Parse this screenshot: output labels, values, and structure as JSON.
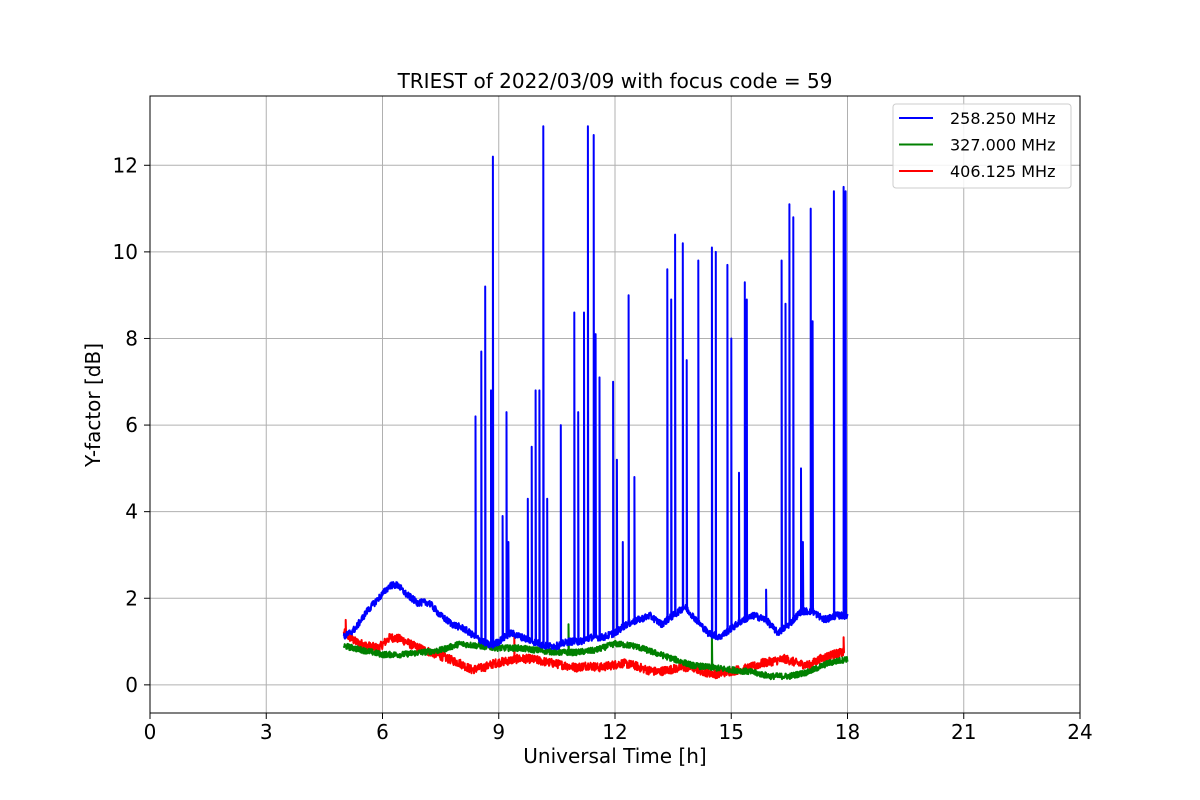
{
  "chart_data": {
    "type": "line",
    "title": "TRIEST of 2022/03/09 with focus code = 59",
    "xlabel": "Universal Time [h]",
    "ylabel": "Y-factor [dB]",
    "xlim": [
      0,
      24
    ],
    "ylim": [
      -0.65,
      13.6
    ],
    "xticks": [
      0,
      3,
      6,
      9,
      12,
      15,
      18,
      21,
      24
    ],
    "yticks": [
      0,
      2,
      4,
      6,
      8,
      10,
      12
    ],
    "grid": true,
    "legend_position": "top-right",
    "series": [
      {
        "name": "258.250 MHz",
        "color": "#0000ff",
        "x": [
          5.0,
          5.3,
          5.6,
          5.9,
          6.2,
          6.4,
          6.6,
          6.9,
          7.2,
          7.5,
          7.8,
          8.1,
          8.4,
          8.6,
          8.8,
          9.0,
          9.3,
          9.6,
          9.9,
          10.2,
          10.5,
          10.8,
          11.1,
          11.4,
          11.7,
          12.0,
          12.3,
          12.6,
          12.9,
          13.2,
          13.5,
          13.8,
          14.1,
          14.4,
          14.7,
          15.0,
          15.3,
          15.6,
          15.9,
          16.2,
          16.5,
          16.8,
          17.1,
          17.4,
          17.7,
          18.0
        ],
        "y": [
          1.1,
          1.3,
          1.7,
          2.0,
          2.3,
          2.3,
          2.1,
          1.9,
          1.9,
          1.6,
          1.4,
          1.3,
          1.1,
          1.0,
          0.9,
          1.0,
          1.2,
          1.1,
          1.0,
          0.9,
          0.9,
          1.0,
          1.0,
          1.1,
          1.1,
          1.2,
          1.4,
          1.5,
          1.6,
          1.4,
          1.6,
          1.8,
          1.5,
          1.2,
          1.1,
          1.3,
          1.5,
          1.6,
          1.5,
          1.2,
          1.4,
          1.7,
          1.7,
          1.5,
          1.6,
          1.6
        ],
        "spikes": [
          [
            8.4,
            6.2
          ],
          [
            8.55,
            7.7
          ],
          [
            8.65,
            9.2
          ],
          [
            8.85,
            12.2
          ],
          [
            8.8,
            6.8
          ],
          [
            9.1,
            3.9
          ],
          [
            9.2,
            6.3
          ],
          [
            9.25,
            3.3
          ],
          [
            9.75,
            4.3
          ],
          [
            9.85,
            5.5
          ],
          [
            9.95,
            6.8
          ],
          [
            10.05,
            6.8
          ],
          [
            10.15,
            12.9
          ],
          [
            10.25,
            4.3
          ],
          [
            10.6,
            6.0
          ],
          [
            10.95,
            8.6
          ],
          [
            11.05,
            6.3
          ],
          [
            11.2,
            8.6
          ],
          [
            11.3,
            12.9
          ],
          [
            11.45,
            12.7
          ],
          [
            11.5,
            8.1
          ],
          [
            11.6,
            7.1
          ],
          [
            11.95,
            7.0
          ],
          [
            12.05,
            5.2
          ],
          [
            12.2,
            3.3
          ],
          [
            12.35,
            9.0
          ],
          [
            12.5,
            4.8
          ],
          [
            13.35,
            9.6
          ],
          [
            13.45,
            8.9
          ],
          [
            13.55,
            10.4
          ],
          [
            13.75,
            10.2
          ],
          [
            13.85,
            7.5
          ],
          [
            14.15,
            9.8
          ],
          [
            14.5,
            10.1
          ],
          [
            14.6,
            10.0
          ],
          [
            14.9,
            9.7
          ],
          [
            15.0,
            8.0
          ],
          [
            15.2,
            4.9
          ],
          [
            15.35,
            9.3
          ],
          [
            15.4,
            8.9
          ],
          [
            15.9,
            2.2
          ],
          [
            16.3,
            9.8
          ],
          [
            16.4,
            8.8
          ],
          [
            16.5,
            11.1
          ],
          [
            16.6,
            10.8
          ],
          [
            16.8,
            5.0
          ],
          [
            16.85,
            3.3
          ],
          [
            17.05,
            11.0
          ],
          [
            17.1,
            8.4
          ],
          [
            17.65,
            11.4
          ],
          [
            17.9,
            11.5
          ],
          [
            17.95,
            11.4
          ]
        ]
      },
      {
        "name": "327.000 MHz",
        "color": "#008000",
        "x": [
          5.0,
          5.5,
          6.0,
          6.5,
          7.0,
          7.5,
          8.0,
          8.5,
          9.0,
          9.5,
          10.0,
          10.5,
          11.0,
          11.5,
          12.0,
          12.5,
          13.0,
          13.5,
          14.0,
          14.5,
          15.0,
          15.5,
          16.0,
          16.5,
          17.0,
          17.5,
          18.0
        ],
        "y": [
          0.9,
          0.8,
          0.7,
          0.7,
          0.75,
          0.8,
          0.95,
          0.9,
          0.85,
          0.85,
          0.8,
          0.75,
          0.75,
          0.8,
          0.95,
          0.9,
          0.75,
          0.6,
          0.45,
          0.4,
          0.35,
          0.3,
          0.2,
          0.2,
          0.3,
          0.5,
          0.6
        ],
        "spikes": [
          [
            10.8,
            1.4
          ],
          [
            14.5,
            1.2
          ]
        ]
      },
      {
        "name": "406.125 MHz",
        "color": "#ff0000",
        "x": [
          5.0,
          5.3,
          5.6,
          5.9,
          6.2,
          6.5,
          6.8,
          7.1,
          7.4,
          7.7,
          8.0,
          8.3,
          8.6,
          8.9,
          9.2,
          9.5,
          9.8,
          10.1,
          10.4,
          10.7,
          11.0,
          11.3,
          11.6,
          11.9,
          12.2,
          12.5,
          12.8,
          13.1,
          13.4,
          13.7,
          14.0,
          14.3,
          14.6,
          14.9,
          15.2,
          15.5,
          15.8,
          16.1,
          16.4,
          16.7,
          17.0,
          17.3,
          17.6,
          17.9
        ],
        "y": [
          1.2,
          1.0,
          0.9,
          0.85,
          1.1,
          1.05,
          0.9,
          0.8,
          0.7,
          0.6,
          0.5,
          0.35,
          0.4,
          0.5,
          0.55,
          0.6,
          0.6,
          0.55,
          0.5,
          0.45,
          0.4,
          0.45,
          0.4,
          0.45,
          0.5,
          0.45,
          0.35,
          0.3,
          0.35,
          0.4,
          0.4,
          0.3,
          0.25,
          0.3,
          0.35,
          0.4,
          0.5,
          0.55,
          0.6,
          0.5,
          0.45,
          0.6,
          0.7,
          0.75
        ],
        "spikes": [
          [
            5.05,
            1.5
          ],
          [
            9.4,
            1.2
          ],
          [
            17.9,
            1.1
          ]
        ]
      }
    ]
  }
}
